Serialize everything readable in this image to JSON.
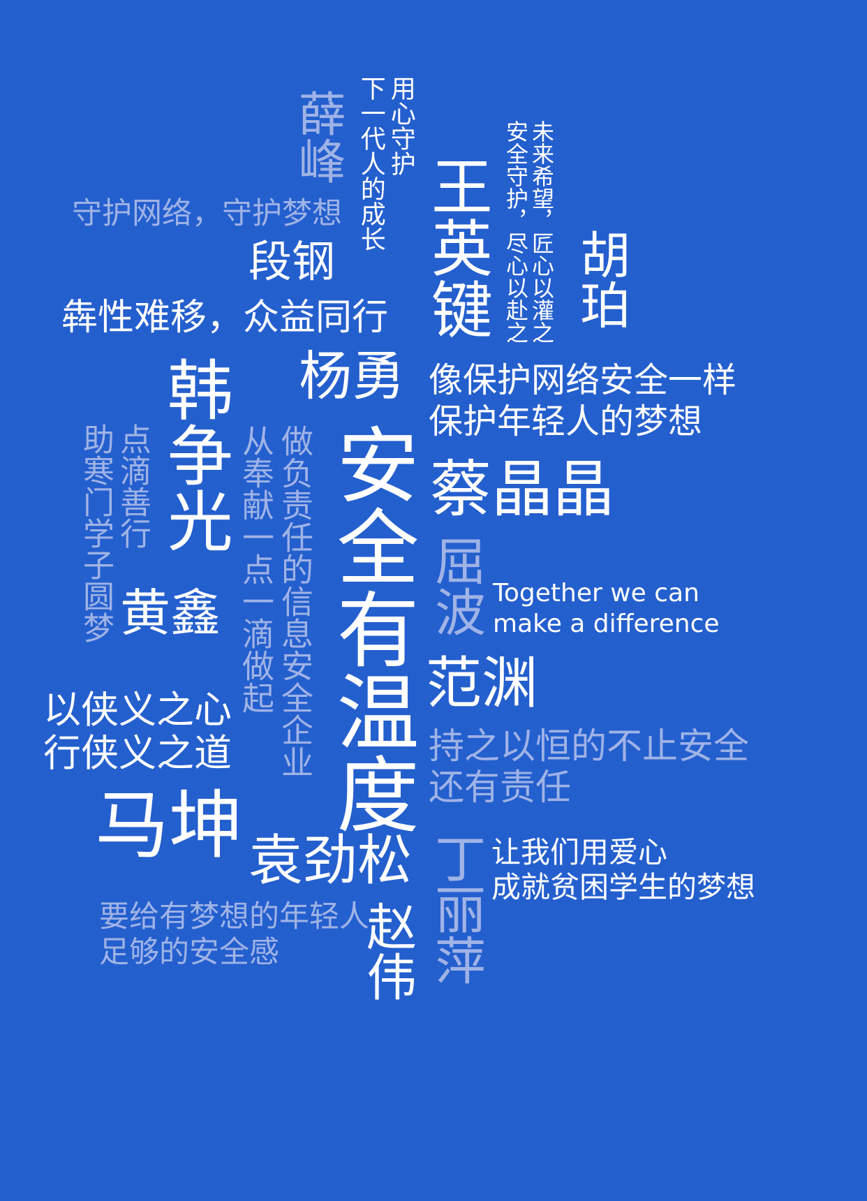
{
  "colors": {
    "background": "#245fce",
    "primary_text": "#ffffff",
    "muted_text": "#9fb3e6"
  },
  "headline": "安全有温度",
  "english_slogan": [
    "Together we can",
    "make a difference"
  ],
  "names": {
    "xue_feng": "薛峰",
    "duan_gang": "段钢",
    "wang_yingjian": "王英键",
    "hu_po": "胡珀",
    "yang_yong": "杨勇",
    "han_zhengguang": "韩争光",
    "huang_xin": "黄鑫",
    "cai_jingjing": "蔡晶晶",
    "qu_bo": "屈波",
    "fan_yuan": "范渊",
    "ma_kun": "马坤",
    "yuan_jinsong": "袁劲松",
    "zhao_wei": "赵伟",
    "ding_liping": "丁丽萍"
  },
  "quotes": {
    "yongxin": [
      "用心守护",
      "下一代人的成长"
    ],
    "shouhu": "守护网络，守护梦想",
    "bingxing": "犇性难移，众益同行",
    "weilai": [
      "未来希望，匠心以灌之",
      "安全守护，尽心以赴之"
    ],
    "xiang": [
      "像保护网络安全一样",
      "保护年轻人的梦想"
    ],
    "dianti": [
      "点滴善行",
      "助寒门学子圆梦"
    ],
    "zuo": "做负责任的信息安全企业",
    "cong": "从奉献一点一滴做起",
    "xiayi": [
      "以侠义之心",
      "行侠义之道"
    ],
    "chizhi": [
      "持之以恒的不止安全",
      "还有责任"
    ],
    "rang": [
      "让我们用爱心",
      "成就贫困学生的梦想"
    ],
    "yaogei": [
      "要给有梦想的年轻人",
      "足够的安全感"
    ]
  }
}
